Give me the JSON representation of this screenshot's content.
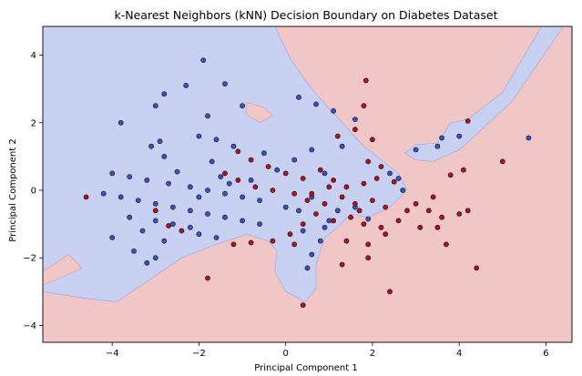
{
  "chart_data": {
    "type": "scatter",
    "title": "k-Nearest Neighbors (kNN) Decision Boundary on Diabetes Dataset",
    "xlabel": "Principal Component 1",
    "ylabel": "Principal Component 2",
    "xlim": [
      -5.6,
      6.6
    ],
    "ylim": [
      -4.5,
      4.85
    ],
    "xticks": [
      -4,
      -2,
      0,
      2,
      4,
      6
    ],
    "yticks": [
      -4,
      -2,
      0,
      2,
      4
    ],
    "grid": false,
    "legend": "none",
    "colors": {
      "region_class0": "#c8d1f1",
      "region_class1": "#f0c6c6",
      "point_class0": "#3a4fc2",
      "point_class1": "#b01020",
      "edge": "#1a1a1a"
    },
    "regions": [
      {
        "class": 0,
        "polygon": [
          [
            -5.6,
            4.85
          ],
          [
            -0.25,
            4.85
          ],
          [
            0.1,
            3.9
          ],
          [
            0.6,
            3.0
          ],
          [
            1.3,
            2.0
          ],
          [
            1.8,
            1.3
          ],
          [
            2.3,
            0.8
          ],
          [
            2.6,
            0.5
          ],
          [
            2.8,
            0.0
          ],
          [
            2.4,
            -0.5
          ],
          [
            1.9,
            -0.8
          ],
          [
            1.5,
            -0.7
          ],
          [
            1.2,
            -1.1
          ],
          [
            0.9,
            -1.4
          ],
          [
            0.7,
            -2.2
          ],
          [
            0.7,
            -2.9
          ],
          [
            0.45,
            -3.3
          ],
          [
            0.0,
            -3.0
          ],
          [
            -0.25,
            -2.4
          ],
          [
            -0.2,
            -1.8
          ],
          [
            -0.4,
            -1.5
          ],
          [
            -0.9,
            -1.3
          ],
          [
            -1.6,
            -1.6
          ],
          [
            -2.4,
            -2.0
          ],
          [
            -3.2,
            -2.7
          ],
          [
            -3.9,
            -3.3
          ],
          [
            -4.6,
            -3.2
          ],
          [
            -5.6,
            -3.0
          ]
        ]
      },
      {
        "class": 1,
        "polygon": [
          [
            -5.6,
            -2.4
          ],
          [
            -5.0,
            -1.9
          ],
          [
            -4.7,
            -2.3
          ],
          [
            -5.2,
            -2.6
          ],
          [
            -5.6,
            -2.8
          ]
        ]
      },
      {
        "class": 0,
        "polygon": [
          [
            2.75,
            1.1
          ],
          [
            3.0,
            1.35
          ],
          [
            3.5,
            1.4
          ],
          [
            3.8,
            2.0
          ],
          [
            4.2,
            2.1
          ],
          [
            5.0,
            2.9
          ],
          [
            5.9,
            4.85
          ],
          [
            6.4,
            4.85
          ],
          [
            5.2,
            2.6
          ],
          [
            4.0,
            1.2
          ],
          [
            3.4,
            0.85
          ],
          [
            3.0,
            0.9
          ]
        ]
      },
      {
        "class": 1,
        "polygon": [
          [
            -0.9,
            2.6
          ],
          [
            -0.5,
            2.45
          ],
          [
            -0.3,
            2.2
          ],
          [
            -0.6,
            2.0
          ],
          [
            -0.9,
            2.25
          ]
        ]
      }
    ],
    "series": [
      {
        "class": 0,
        "points": [
          [
            -1.9,
            3.85
          ],
          [
            -1.4,
            3.15
          ],
          [
            -2.3,
            3.1
          ],
          [
            -2.8,
            2.85
          ],
          [
            -3.0,
            2.5
          ],
          [
            -1.8,
            2.2
          ],
          [
            -1.0,
            2.5
          ],
          [
            0.3,
            2.75
          ],
          [
            0.7,
            2.55
          ],
          [
            1.1,
            2.35
          ],
          [
            1.6,
            2.1
          ],
          [
            -3.8,
            2.0
          ],
          [
            -2.9,
            1.45
          ],
          [
            -3.1,
            1.3
          ],
          [
            -2.0,
            1.6
          ],
          [
            -1.6,
            1.5
          ],
          [
            -1.2,
            1.3
          ],
          [
            -0.5,
            1.1
          ],
          [
            -4.0,
            0.5
          ],
          [
            -3.6,
            0.4
          ],
          [
            -3.2,
            0.3
          ],
          [
            -2.7,
            0.2
          ],
          [
            -2.2,
            0.1
          ],
          [
            -1.8,
            0.0
          ],
          [
            -1.4,
            -0.1
          ],
          [
            -1.0,
            -0.2
          ],
          [
            -0.6,
            -0.3
          ],
          [
            -4.2,
            -0.1
          ],
          [
            -3.8,
            -0.2
          ],
          [
            -3.4,
            -0.3
          ],
          [
            -3.0,
            -0.4
          ],
          [
            -2.6,
            -0.5
          ],
          [
            -2.2,
            -0.6
          ],
          [
            -1.8,
            -0.7
          ],
          [
            -1.4,
            -0.8
          ],
          [
            -1.0,
            -0.9
          ],
          [
            -0.6,
            -1.0
          ],
          [
            -3.6,
            -0.8
          ],
          [
            -3.0,
            -0.9
          ],
          [
            -2.6,
            -1.0
          ],
          [
            -2.2,
            -1.1
          ],
          [
            -4.0,
            -1.4
          ],
          [
            -3.3,
            -1.2
          ],
          [
            -2.8,
            -1.5
          ],
          [
            -2.0,
            -1.3
          ],
          [
            -3.5,
            -1.8
          ],
          [
            -3.0,
            -2.0
          ],
          [
            -3.2,
            -2.15
          ],
          [
            -1.6,
            -1.4
          ],
          [
            0.9,
            -1.1
          ],
          [
            0.8,
            -1.5
          ],
          [
            0.6,
            -1.9
          ],
          [
            0.5,
            -2.3
          ],
          [
            1.0,
            -0.9
          ],
          [
            0.3,
            -0.6
          ],
          [
            0.0,
            -0.5
          ],
          [
            0.6,
            -0.2
          ],
          [
            1.2,
            -0.6
          ],
          [
            1.6,
            -0.5
          ],
          [
            2.4,
            0.5
          ],
          [
            2.6,
            0.35
          ],
          [
            3.0,
            1.2
          ],
          [
            3.5,
            1.3
          ],
          [
            3.6,
            1.55
          ],
          [
            4.0,
            1.6
          ],
          [
            5.6,
            1.55
          ],
          [
            1.3,
            1.3
          ],
          [
            0.6,
            1.2
          ],
          [
            0.2,
            0.9
          ],
          [
            -0.2,
            0.6
          ],
          [
            0.9,
            0.5
          ],
          [
            2.7,
            0.0
          ],
          [
            -2.5,
            0.55
          ],
          [
            -1.7,
            0.85
          ],
          [
            -1.3,
            0.2
          ],
          [
            -0.8,
            0.3
          ],
          [
            -2.0,
            -0.2
          ],
          [
            -1.5,
            0.4
          ],
          [
            -2.8,
            1.0
          ],
          [
            0.4,
            -1.2
          ],
          [
            1.9,
            -0.85
          ]
        ]
      },
      {
        "class": 1,
        "points": [
          [
            1.85,
            3.25
          ],
          [
            1.8,
            2.5
          ],
          [
            1.6,
            1.8
          ],
          [
            2.0,
            1.5
          ],
          [
            1.2,
            1.6
          ],
          [
            1.9,
            0.85
          ],
          [
            2.2,
            0.7
          ],
          [
            -1.1,
            1.15
          ],
          [
            -0.8,
            0.9
          ],
          [
            -0.4,
            0.7
          ],
          [
            0.0,
            0.5
          ],
          [
            0.4,
            0.35
          ],
          [
            0.8,
            0.6
          ],
          [
            1.1,
            0.3
          ],
          [
            1.4,
            0.1
          ],
          [
            1.8,
            0.2
          ],
          [
            2.1,
            0.35
          ],
          [
            -1.4,
            0.5
          ],
          [
            -1.1,
            0.3
          ],
          [
            -0.7,
            0.1
          ],
          [
            -0.3,
            0.0
          ],
          [
            0.2,
            -0.1
          ],
          [
            0.5,
            -0.3
          ],
          [
            0.9,
            -0.4
          ],
          [
            1.3,
            -0.2
          ],
          [
            1.6,
            -0.4
          ],
          [
            2.0,
            -0.3
          ],
          [
            2.3,
            -0.5
          ],
          [
            1.5,
            -0.8
          ],
          [
            1.8,
            -1.0
          ],
          [
            2.2,
            -1.1
          ],
          [
            2.6,
            -0.9
          ],
          [
            1.1,
            -0.9
          ],
          [
            0.7,
            -0.7
          ],
          [
            0.4,
            -1.0
          ],
          [
            0.1,
            -1.3
          ],
          [
            -0.3,
            -1.5
          ],
          [
            -0.8,
            -1.55
          ],
          [
            -1.2,
            -1.6
          ],
          [
            1.4,
            -1.5
          ],
          [
            1.9,
            -1.6
          ],
          [
            2.3,
            -1.3
          ],
          [
            2.8,
            -0.6
          ],
          [
            3.0,
            -0.4
          ],
          [
            3.3,
            -0.6
          ],
          [
            3.6,
            -0.8
          ],
          [
            4.0,
            -0.7
          ],
          [
            4.2,
            -0.6
          ],
          [
            3.7,
            -1.6
          ],
          [
            3.1,
            -1.1
          ],
          [
            3.4,
            -0.2
          ],
          [
            3.8,
            0.45
          ],
          [
            4.1,
            0.6
          ],
          [
            4.2,
            2.05
          ],
          [
            5.0,
            0.85
          ],
          [
            4.4,
            -2.3
          ],
          [
            1.9,
            -2.0
          ],
          [
            1.3,
            -2.2
          ],
          [
            -1.8,
            -2.6
          ],
          [
            0.4,
            -3.4
          ],
          [
            2.4,
            -3.0
          ],
          [
            -2.7,
            -1.05
          ],
          [
            -4.6,
            -0.2
          ],
          [
            -3.0,
            -0.6
          ],
          [
            -2.4,
            -1.2
          ],
          [
            0.6,
            -0.1
          ],
          [
            1.0,
            0.1
          ],
          [
            2.5,
            0.25
          ],
          [
            3.5,
            -1.1
          ],
          [
            1.7,
            -0.6
          ],
          [
            0.2,
            -1.6
          ]
        ]
      }
    ]
  }
}
